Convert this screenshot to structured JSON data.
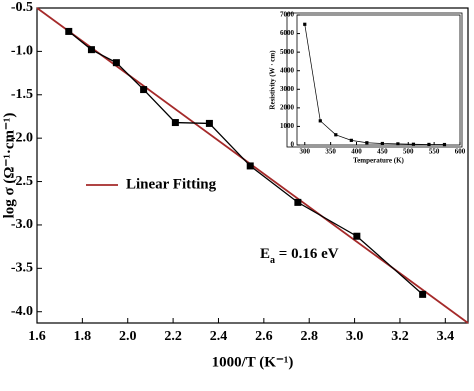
{
  "chart_data": [
    {
      "type": "line",
      "xlabel": "1000/T (K⁻¹)",
      "ylabel": "log σ (Ω⁻¹·cm⁻¹)",
      "series": [
        {
          "color": "#000000",
          "marker": "square",
          "x": [
            1.74,
            1.84,
            1.95,
            2.07,
            2.21,
            2.36,
            2.54,
            2.75,
            3.01,
            3.3
          ],
          "values": [
            -0.77,
            -0.98,
            -1.13,
            -1.44,
            -1.82,
            -1.83,
            -2.32,
            -2.74,
            -3.13,
            -3.8
          ]
        },
        {
          "name": "Linear Fitting",
          "color": "#a52a2a",
          "marker": "none",
          "x": [
            1.6,
            3.5
          ],
          "values": [
            -0.5,
            -4.13
          ]
        }
      ],
      "annotation": {
        "main": "E",
        "sub": "a",
        "rest": " = 0.16 eV"
      },
      "xlim": [
        1.6,
        3.5
      ],
      "ylim": [
        -4.13,
        -0.5
      ],
      "xticks": [
        1.6,
        1.8,
        {
          "value": 2.0,
          "label": "2.0"
        },
        2.2,
        2.4,
        2.6,
        2.8,
        {
          "value": 3.0,
          "label": "3.0"
        },
        3.2,
        3.4
      ],
      "yticks": [
        -0.5,
        {
          "value": -1.0,
          "label": "-1.0"
        },
        -1.5,
        {
          "value": -2.0,
          "label": "-2.0"
        },
        -2.5,
        {
          "value": -3.0,
          "label": "-3.0"
        },
        -3.5,
        {
          "value": -4.0,
          "label": "-4.0"
        }
      ],
      "legend": "left"
    },
    {
      "type": "line",
      "xlabel": "Temperature (K)",
      "ylabel": "Resistivity (W · cm)",
      "series": [
        {
          "color": "#000000",
          "marker": "square",
          "x": [
            300,
            330,
            360,
            390,
            420,
            450,
            480,
            510,
            540,
            570
          ],
          "values": [
            6500,
            1300,
            550,
            250,
            120,
            80,
            60,
            40,
            30,
            25
          ]
        }
      ],
      "xlim": [
        285,
        600
      ],
      "ylim": [
        0,
        7000
      ],
      "xticks": [
        300,
        350,
        400,
        450,
        500,
        550,
        600
      ],
      "yticks": [
        0,
        1000,
        2000,
        3000,
        4000,
        5000,
        6000,
        7000
      ]
    }
  ]
}
